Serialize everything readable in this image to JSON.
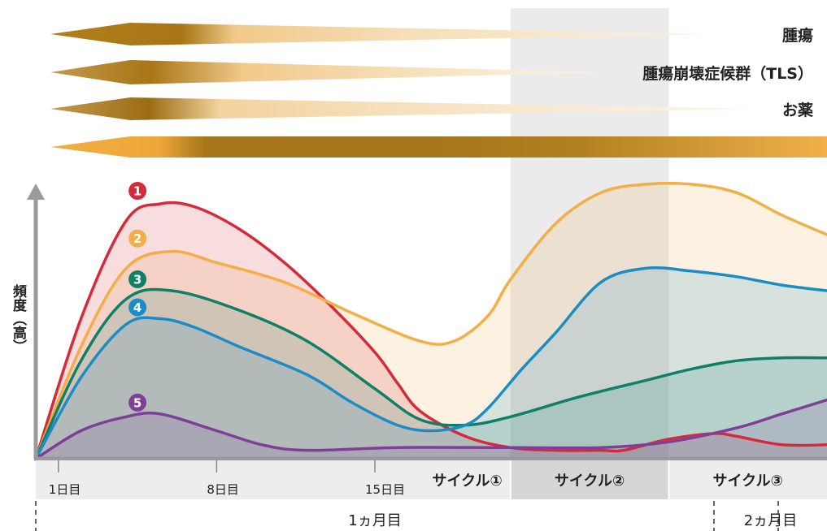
{
  "colors": {
    "red": "#d42a3a",
    "orange": "#f3ae48",
    "green": "#0f7f68",
    "blue": "#1b8dc4",
    "purple": "#7f3f98",
    "axis": "#9a9a9a",
    "highlight": "#e2e2e2",
    "gold": "#b37f1b"
  },
  "wedges": [
    {
      "label": "腫瘍"
    },
    {
      "label": "腫瘍崩壊症候群（TLS）"
    },
    {
      "label": "お薬"
    },
    {
      "label": ""
    }
  ],
  "chart_data": {
    "type": "area",
    "title": "",
    "xlabel": "",
    "ylabel": "頻度（高）",
    "x_units": "days",
    "xlim": [
      0,
      50
    ],
    "ylim": [
      0,
      100
    ],
    "grid": false,
    "x_ticks": [
      {
        "x": 1,
        "label": "1日目"
      },
      {
        "x": 8,
        "label": "8日目"
      },
      {
        "x": 15,
        "label": "15日目"
      }
    ],
    "cycles": [
      {
        "label": "サイクル①",
        "start": 0,
        "end": 21
      },
      {
        "label": "サイクル②",
        "start": 21,
        "end": 28,
        "highlight": true
      },
      {
        "label": "サイクル③",
        "start": 28,
        "end": 35
      }
    ],
    "months": [
      {
        "label": "1ヵ月目",
        "start": 0,
        "end": 30
      },
      {
        "label": "2ヵ月目",
        "start": 30,
        "end": 35
      }
    ],
    "series": [
      {
        "name": "1",
        "color": "#d42a3a",
        "points": [
          [
            0,
            0
          ],
          [
            2,
            50
          ],
          [
            4,
            85
          ],
          [
            5.5,
            91
          ],
          [
            7,
            90
          ],
          [
            9,
            82
          ],
          [
            11,
            70
          ],
          [
            13,
            55
          ],
          [
            15,
            38
          ],
          [
            16,
            27
          ],
          [
            17,
            17
          ],
          [
            19,
            8
          ],
          [
            21,
            4
          ],
          [
            23,
            3
          ],
          [
            25,
            3
          ],
          [
            26,
            3
          ],
          [
            28,
            7
          ],
          [
            30,
            9
          ],
          [
            31,
            8
          ],
          [
            33,
            5
          ],
          [
            35,
            5
          ]
        ]
      },
      {
        "name": "2",
        "color": "#f3ae48",
        "points": [
          [
            0,
            0
          ],
          [
            2,
            40
          ],
          [
            4,
            68
          ],
          [
            6,
            74
          ],
          [
            8,
            70
          ],
          [
            11,
            63
          ],
          [
            14,
            52
          ],
          [
            17,
            42
          ],
          [
            18.5,
            42
          ],
          [
            20,
            51
          ],
          [
            21,
            64
          ],
          [
            23,
            84
          ],
          [
            25,
            95
          ],
          [
            27,
            98
          ],
          [
            29,
            98
          ],
          [
            31,
            95
          ],
          [
            33,
            87
          ],
          [
            35,
            80
          ]
        ]
      },
      {
        "name": "3",
        "color": "#0f7f68",
        "points": [
          [
            0,
            0
          ],
          [
            2,
            35
          ],
          [
            4,
            57
          ],
          [
            6,
            60
          ],
          [
            9,
            53
          ],
          [
            12,
            42
          ],
          [
            15,
            25
          ],
          [
            17,
            14
          ],
          [
            19,
            12
          ],
          [
            21,
            15
          ],
          [
            24,
            22
          ],
          [
            27,
            28
          ],
          [
            29,
            32
          ],
          [
            31,
            35
          ],
          [
            33,
            36
          ],
          [
            35,
            36
          ]
        ]
      },
      {
        "name": "4",
        "color": "#1b8dc4",
        "points": [
          [
            0,
            0
          ],
          [
            2,
            29
          ],
          [
            4,
            48
          ],
          [
            5.5,
            50
          ],
          [
            7,
            47
          ],
          [
            9,
            40
          ],
          [
            12,
            30
          ],
          [
            14,
            20
          ],
          [
            16,
            12
          ],
          [
            17.5,
            10
          ],
          [
            19,
            12
          ],
          [
            20,
            18
          ],
          [
            21.5,
            32
          ],
          [
            23,
            45
          ],
          [
            25,
            63
          ],
          [
            27,
            68
          ],
          [
            29,
            67
          ],
          [
            31,
            65
          ],
          [
            33,
            62
          ],
          [
            35,
            60
          ]
        ]
      },
      {
        "name": "5",
        "color": "#7f3f98",
        "points": [
          [
            0,
            0
          ],
          [
            2,
            10
          ],
          [
            4,
            15
          ],
          [
            5.5,
            16
          ],
          [
            8,
            10
          ],
          [
            10,
            5
          ],
          [
            12,
            3
          ],
          [
            16,
            4
          ],
          [
            21,
            4
          ],
          [
            25,
            4
          ],
          [
            28,
            6
          ],
          [
            31,
            11
          ],
          [
            33,
            16
          ],
          [
            35,
            21
          ]
        ]
      }
    ]
  }
}
